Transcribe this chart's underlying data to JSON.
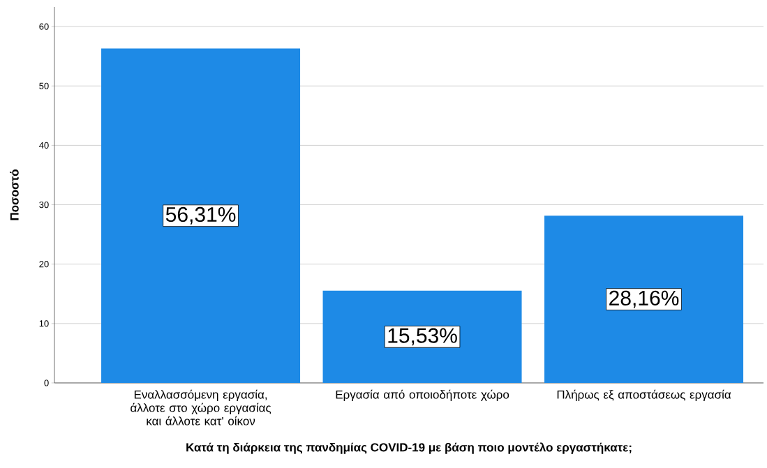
{
  "chart_data": {
    "type": "bar",
    "xlabel": "Κατά τη διάρκεια της πανδημίας COVID-19 με βάση ποιο μοντέλο εργαστήκατε;",
    "ylabel": "Ποσοστό",
    "categories": [
      "Εναλλασσόμενη εργασία, άλλοτε στο χώρο εργασίας και άλλοτε κατ' οίκον",
      "Εργασία από οποιοδήποτε χώρο",
      "Πλήρως εξ αποστάσεως εργασία"
    ],
    "values": [
      56.31,
      15.53,
      28.16
    ],
    "value_labels": [
      "56,31%",
      "15,53%",
      "28,16%"
    ],
    "color": "#1e8ae6",
    "ylim": [
      0,
      63.3
    ],
    "yticks": [
      0,
      10,
      20,
      30,
      40,
      50,
      60
    ],
    "grid": "y"
  }
}
